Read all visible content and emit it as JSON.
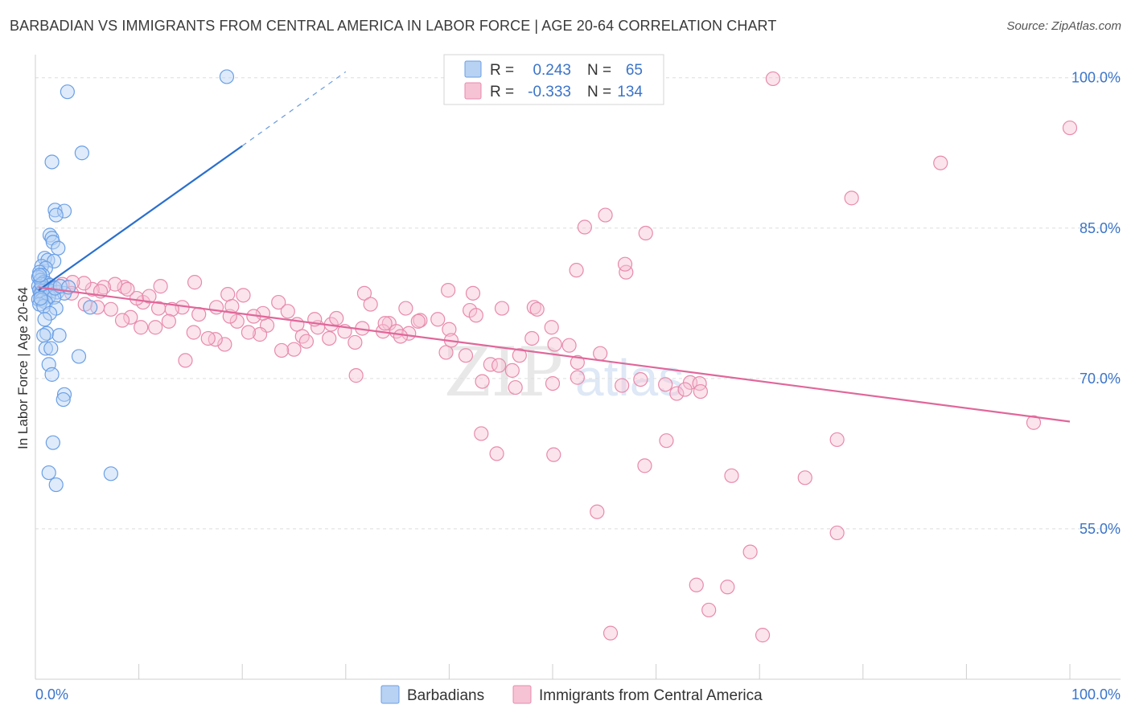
{
  "header": {
    "title": "BARBADIAN VS IMMIGRANTS FROM CENTRAL AMERICA IN LABOR FORCE | AGE 20-64 CORRELATION CHART",
    "source": "Source: ZipAtlas.com"
  },
  "watermark": {
    "zip": "ZIP",
    "atlas": "atlas"
  },
  "colors": {
    "blue": "#6a9fe6",
    "blue_fill": "#b8d2f3",
    "blue_line": "#2a6fce",
    "pink": "#e88aac",
    "pink_fill": "#f6c3d4",
    "pink_line": "#e0679a",
    "tick": "#3a74c9"
  },
  "chart_data": {
    "type": "scatter",
    "xlabel": "",
    "ylabel": "In Labor Force | Age 20-64",
    "xlim": [
      0,
      100
    ],
    "ylim": [
      40,
      101.5
    ],
    "x_tick_labels": [
      "0.0%",
      "100.0%"
    ],
    "y_ticks": [
      55,
      70,
      85,
      100
    ],
    "y_tick_labels": [
      "55.0%",
      "70.0%",
      "85.0%",
      "100.0%"
    ],
    "legend": [
      {
        "r_label": "R =",
        "r_value": "0.243",
        "n_label": "N =",
        "n_value": "65"
      },
      {
        "r_label": "R =",
        "r_value": "-0.333",
        "n_label": "N =",
        "n_value": "134"
      }
    ],
    "series": [
      {
        "name": "Barbadians",
        "color": "blue",
        "trend": {
          "x0": 0.3,
          "y0": 78.8,
          "x1": 20,
          "y1": 93.2,
          "dash_x1": 30,
          "dash_y1": 100.6
        },
        "points": [
          [
            18.5,
            100.1
          ],
          [
            3.1,
            98.6
          ],
          [
            4.5,
            92.5
          ],
          [
            1.6,
            91.6
          ],
          [
            1.9,
            86.8
          ],
          [
            2.8,
            86.7
          ],
          [
            2.0,
            86.3
          ],
          [
            1.4,
            84.3
          ],
          [
            1.6,
            84.0
          ],
          [
            1.7,
            83.6
          ],
          [
            2.2,
            83.0
          ],
          [
            0.9,
            82.0
          ],
          [
            1.2,
            81.8
          ],
          [
            1.8,
            81.7
          ],
          [
            0.6,
            81.2
          ],
          [
            1.0,
            81.0
          ],
          [
            0.4,
            80.6
          ],
          [
            0.7,
            80.3
          ],
          [
            0.3,
            80.1
          ],
          [
            0.5,
            79.8
          ],
          [
            0.8,
            79.6
          ],
          [
            1.1,
            79.5
          ],
          [
            1.4,
            79.3
          ],
          [
            0.3,
            79.2
          ],
          [
            0.6,
            79.1
          ],
          [
            0.9,
            79.0
          ],
          [
            1.2,
            78.9
          ],
          [
            0.4,
            78.8
          ],
          [
            0.7,
            78.7
          ],
          [
            1.5,
            78.7
          ],
          [
            2.1,
            78.6
          ],
          [
            2.8,
            78.5
          ],
          [
            0.5,
            78.4
          ],
          [
            0.9,
            78.3
          ],
          [
            1.3,
            78.2
          ],
          [
            1.8,
            78.1
          ],
          [
            0.3,
            77.9
          ],
          [
            0.6,
            77.8
          ],
          [
            1.0,
            77.6
          ],
          [
            0.4,
            77.4
          ],
          [
            0.8,
            77.2
          ],
          [
            2.0,
            77.0
          ],
          [
            5.3,
            77.1
          ],
          [
            1.4,
            76.5
          ],
          [
            0.9,
            75.9
          ],
          [
            1.1,
            74.5
          ],
          [
            0.8,
            74.3
          ],
          [
            2.3,
            74.3
          ],
          [
            1.0,
            73.0
          ],
          [
            1.5,
            73.0
          ],
          [
            4.2,
            72.2
          ],
          [
            1.3,
            71.4
          ],
          [
            1.6,
            70.4
          ],
          [
            2.8,
            68.4
          ],
          [
            2.7,
            67.9
          ],
          [
            1.7,
            63.6
          ],
          [
            7.3,
            60.5
          ],
          [
            1.3,
            60.6
          ],
          [
            2.0,
            59.4
          ],
          [
            0.6,
            79.4
          ],
          [
            1.9,
            79.0
          ],
          [
            2.4,
            79.2
          ],
          [
            0.5,
            78.0
          ],
          [
            3.2,
            79.1
          ],
          [
            0.4,
            80.3
          ]
        ]
      },
      {
        "name": "Immigrants from Central America",
        "color": "pink",
        "trend": {
          "x0": 0.3,
          "y0": 79.1,
          "x1": 100,
          "y1": 65.7
        },
        "points": [
          [
            71.3,
            99.9
          ],
          [
            100,
            95.0
          ],
          [
            87.5,
            91.5
          ],
          [
            78.9,
            88.0
          ],
          [
            55.1,
            86.3
          ],
          [
            53.1,
            85.1
          ],
          [
            59.0,
            84.5
          ],
          [
            57.1,
            80.6
          ],
          [
            52.3,
            80.8
          ],
          [
            57.0,
            81.4
          ],
          [
            42.3,
            78.5
          ],
          [
            39.9,
            78.8
          ],
          [
            31.8,
            78.5
          ],
          [
            32.4,
            77.4
          ],
          [
            48.2,
            77.1
          ],
          [
            48.5,
            76.9
          ],
          [
            42.0,
            76.8
          ],
          [
            35.8,
            77.0
          ],
          [
            42.6,
            76.3
          ],
          [
            37.2,
            75.8
          ],
          [
            40.0,
            74.9
          ],
          [
            38.9,
            75.9
          ],
          [
            34.2,
            75.5
          ],
          [
            34.9,
            74.7
          ],
          [
            33.6,
            74.7
          ],
          [
            31.6,
            75.0
          ],
          [
            28.6,
            75.4
          ],
          [
            29.9,
            74.7
          ],
          [
            27.3,
            75.1
          ],
          [
            25.3,
            75.4
          ],
          [
            25.8,
            74.2
          ],
          [
            26.2,
            73.7
          ],
          [
            22.4,
            75.3
          ],
          [
            21.7,
            74.4
          ],
          [
            20.6,
            74.6
          ],
          [
            19.5,
            75.7
          ],
          [
            18.8,
            76.2
          ],
          [
            17.5,
            77.1
          ],
          [
            15.8,
            76.4
          ],
          [
            14.2,
            77.1
          ],
          [
            13.2,
            76.9
          ],
          [
            11.9,
            77.0
          ],
          [
            10.4,
            77.6
          ],
          [
            9.8,
            78.0
          ],
          [
            8.6,
            79.1
          ],
          [
            7.7,
            79.4
          ],
          [
            6.6,
            79.1
          ],
          [
            5.5,
            78.9
          ],
          [
            4.7,
            79.5
          ],
          [
            3.6,
            79.6
          ],
          [
            2.6,
            79.4
          ],
          [
            1.8,
            79.1
          ],
          [
            1.1,
            78.7
          ],
          [
            0.5,
            78.6
          ],
          [
            3.5,
            78.5
          ],
          [
            6.3,
            78.7
          ],
          [
            8.9,
            78.9
          ],
          [
            12.1,
            79.2
          ],
          [
            15.4,
            79.6
          ],
          [
            18.6,
            78.4
          ],
          [
            20.1,
            78.3
          ],
          [
            23.5,
            77.6
          ],
          [
            24.4,
            76.7
          ],
          [
            29.1,
            76.0
          ],
          [
            33.8,
            75.5
          ],
          [
            37.0,
            75.7
          ],
          [
            45.1,
            77.0
          ],
          [
            49.9,
            75.1
          ],
          [
            48.0,
            74.0
          ],
          [
            50.2,
            73.4
          ],
          [
            46.8,
            72.3
          ],
          [
            41.6,
            72.3
          ],
          [
            39.7,
            72.6
          ],
          [
            30.9,
            73.6
          ],
          [
            28.4,
            74.0
          ],
          [
            25.0,
            72.9
          ],
          [
            23.8,
            72.8
          ],
          [
            18.3,
            73.4
          ],
          [
            17.4,
            73.9
          ],
          [
            16.7,
            74.0
          ],
          [
            15.3,
            74.6
          ],
          [
            12.9,
            75.7
          ],
          [
            11.6,
            75.1
          ],
          [
            10.2,
            75.1
          ],
          [
            9.2,
            76.1
          ],
          [
            8.4,
            75.8
          ],
          [
            7.3,
            76.9
          ],
          [
            6.0,
            77.1
          ],
          [
            4.8,
            77.4
          ],
          [
            14.5,
            71.8
          ],
          [
            31.0,
            70.3
          ],
          [
            44.0,
            71.4
          ],
          [
            46.1,
            70.8
          ],
          [
            52.4,
            71.6
          ],
          [
            51.6,
            73.3
          ],
          [
            54.6,
            72.5
          ],
          [
            52.4,
            70.1
          ],
          [
            58.5,
            69.9
          ],
          [
            60.9,
            69.4
          ],
          [
            63.3,
            69.6
          ],
          [
            64.2,
            69.5
          ],
          [
            62.0,
            68.5
          ],
          [
            56.7,
            69.3
          ],
          [
            46.4,
            69.1
          ],
          [
            43.2,
            69.7
          ],
          [
            50.0,
            69.5
          ],
          [
            62.8,
            68.9
          ],
          [
            64.3,
            68.7
          ],
          [
            43.1,
            64.5
          ],
          [
            44.6,
            62.5
          ],
          [
            50.1,
            62.4
          ],
          [
            61.0,
            63.8
          ],
          [
            77.5,
            63.9
          ],
          [
            58.9,
            61.3
          ],
          [
            67.3,
            60.3
          ],
          [
            74.4,
            60.1
          ],
          [
            54.3,
            56.7
          ],
          [
            77.5,
            54.6
          ],
          [
            69.1,
            52.7
          ],
          [
            63.9,
            49.4
          ],
          [
            66.9,
            49.2
          ],
          [
            65.1,
            46.9
          ],
          [
            55.6,
            44.6
          ],
          [
            70.3,
            44.4
          ],
          [
            40.2,
            73.8
          ],
          [
            36.1,
            74.5
          ],
          [
            27.0,
            75.9
          ],
          [
            22.0,
            76.5
          ],
          [
            19.0,
            77.2
          ],
          [
            21.1,
            76.2
          ],
          [
            96.5,
            65.6
          ],
          [
            11.0,
            78.2
          ],
          [
            35.3,
            74.2
          ],
          [
            44.8,
            71.3
          ]
        ]
      }
    ]
  }
}
